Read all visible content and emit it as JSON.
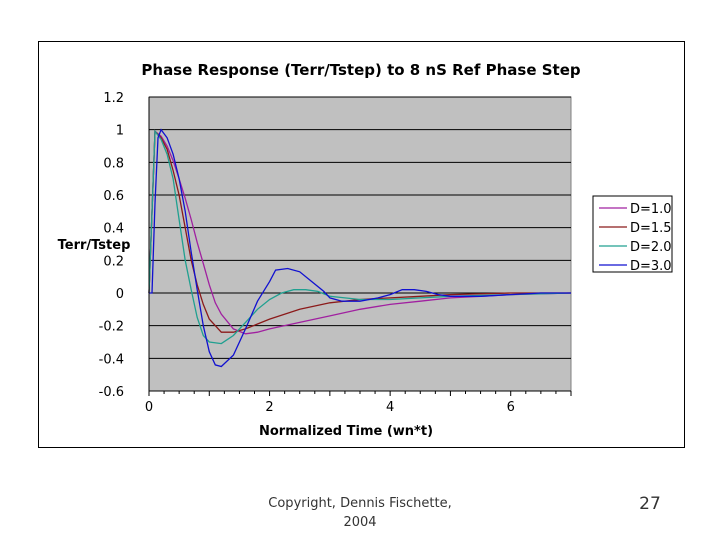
{
  "chart_data": {
    "type": "line",
    "title": "Phase Response (Terr/Tstep) to 8 nS Ref Phase Step",
    "xlabel": "Normalized Time (wn*t)",
    "ylabel": "Terr/Tstep",
    "xlim": [
      0,
      7
    ],
    "ylim": [
      -0.6,
      1.2
    ],
    "xticks": [
      "0",
      "2",
      "4",
      "6"
    ],
    "yticks": [
      "1.2",
      "1",
      "0.8",
      "0.6",
      "0.4",
      "0.2",
      "0",
      "-0.2",
      "-0.4",
      "-0.6"
    ],
    "grid": "horizontal",
    "legend_position": "right",
    "series": [
      {
        "name": "D=1.0",
        "color": "#a020a0",
        "x": [
          0,
          0.1,
          0.2,
          0.3,
          0.4,
          0.5,
          0.6,
          0.7,
          0.8,
          0.9,
          1.0,
          1.1,
          1.2,
          1.4,
          1.6,
          1.8,
          2.0,
          2.5,
          3.0,
          3.5,
          4.0,
          4.5,
          5.0,
          5.5,
          6.0,
          6.5,
          7.0
        ],
        "y": [
          0,
          0.99,
          0.96,
          0.9,
          0.81,
          0.7,
          0.58,
          0.45,
          0.31,
          0.18,
          0.05,
          -0.06,
          -0.13,
          -0.22,
          -0.25,
          -0.24,
          -0.22,
          -0.18,
          -0.14,
          -0.1,
          -0.07,
          -0.05,
          -0.03,
          -0.02,
          -0.01,
          -0.005,
          0
        ]
      },
      {
        "name": "D=1.5",
        "color": "#8b1a1a",
        "x": [
          0,
          0.1,
          0.2,
          0.3,
          0.4,
          0.5,
          0.6,
          0.7,
          0.8,
          0.9,
          1.0,
          1.2,
          1.4,
          1.6,
          1.8,
          2.0,
          2.5,
          3.0,
          3.5,
          4.0,
          4.5,
          5.0,
          6.0,
          7.0
        ],
        "y": [
          0,
          0.99,
          0.95,
          0.88,
          0.75,
          0.6,
          0.4,
          0.2,
          0.05,
          -0.07,
          -0.16,
          -0.24,
          -0.24,
          -0.22,
          -0.19,
          -0.16,
          -0.1,
          -0.06,
          -0.04,
          -0.03,
          -0.02,
          -0.01,
          0,
          0
        ]
      },
      {
        "name": "D=2.0",
        "color": "#20a090",
        "x": [
          0,
          0.1,
          0.2,
          0.3,
          0.4,
          0.5,
          0.6,
          0.7,
          0.8,
          0.9,
          1.0,
          1.2,
          1.4,
          1.6,
          1.8,
          2.0,
          2.2,
          2.4,
          2.6,
          2.8,
          3.0,
          3.5,
          4.0,
          4.5,
          5.0,
          6.0,
          7.0
        ],
        "y": [
          0,
          0.99,
          0.94,
          0.85,
          0.7,
          0.45,
          0.2,
          0.02,
          -0.15,
          -0.26,
          -0.3,
          -0.31,
          -0.26,
          -0.18,
          -0.1,
          -0.04,
          0,
          0.02,
          0.02,
          0.01,
          -0.02,
          -0.04,
          -0.04,
          -0.03,
          -0.02,
          -0.01,
          0
        ]
      },
      {
        "name": "D=3.0",
        "color": "#1010d0",
        "x": [
          0,
          0.05,
          0.1,
          0.15,
          0.2,
          0.3,
          0.4,
          0.5,
          0.6,
          0.7,
          0.8,
          0.9,
          1.0,
          1.1,
          1.2,
          1.4,
          1.6,
          1.8,
          2.0,
          2.1,
          2.3,
          2.5,
          2.7,
          2.9,
          3.0,
          3.2,
          3.5,
          3.8,
          4.0,
          4.2,
          4.4,
          4.6,
          4.8,
          5.0,
          5.5,
          6.0,
          6.5,
          7.0
        ],
        "y": [
          0,
          0,
          0.55,
          0.95,
          1.0,
          0.95,
          0.85,
          0.7,
          0.5,
          0.25,
          0.02,
          -0.2,
          -0.36,
          -0.44,
          -0.45,
          -0.38,
          -0.22,
          -0.05,
          0.07,
          0.14,
          0.15,
          0.13,
          0.07,
          0.01,
          -0.03,
          -0.05,
          -0.05,
          -0.03,
          -0.01,
          0.02,
          0.02,
          0.01,
          -0.01,
          -0.02,
          -0.02,
          -0.01,
          0,
          0
        ]
      }
    ]
  },
  "footer": {
    "copyright_line1": "Copyright, Dennis Fischette,",
    "copyright_line2": "2004",
    "page_number": "27"
  }
}
